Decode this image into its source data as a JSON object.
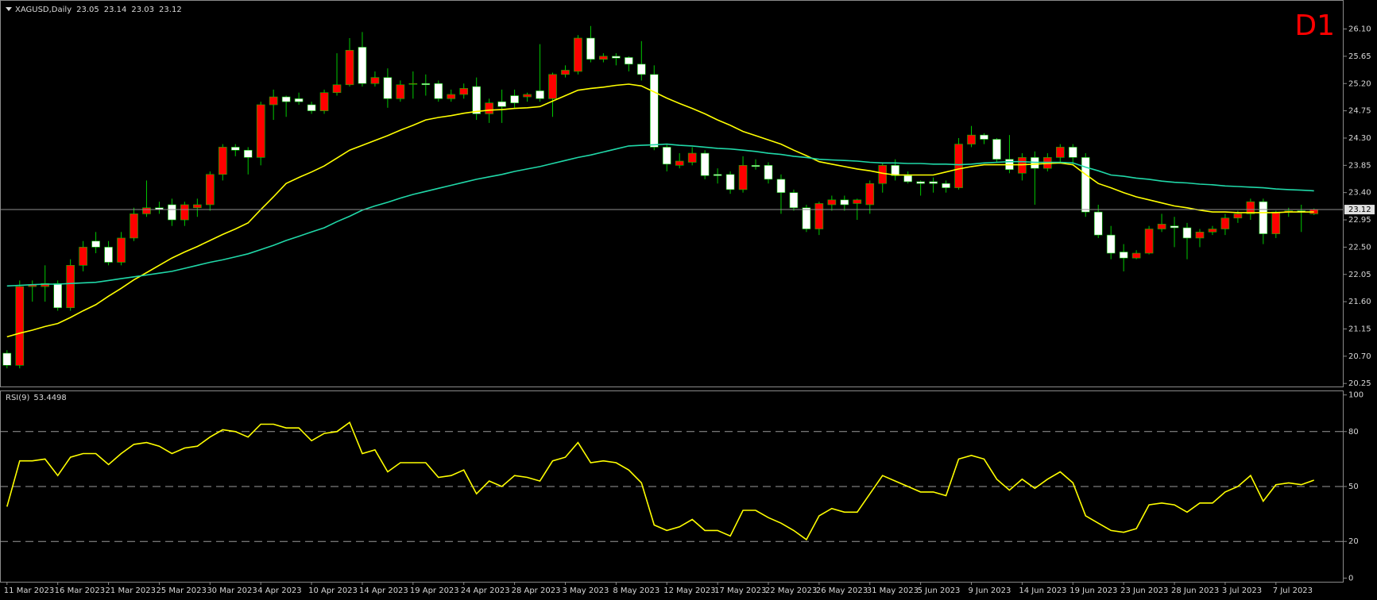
{
  "chart_data": [
    {
      "type": "candlestick",
      "title": "XAGUSD,Daily",
      "timeframe": "D1",
      "categories": [
        "11 Mar 2023",
        null,
        null,
        null,
        "16 Mar 2023",
        null,
        null,
        null,
        "21 Mar 2023",
        null,
        null,
        null,
        "25 Mar 2023",
        null,
        null,
        null,
        "30 Mar 2023",
        null,
        null,
        null,
        "4 Apr 2023",
        null,
        null,
        null,
        "10 Apr 2023",
        null,
        null,
        null,
        "14 Apr 2023",
        null,
        null,
        null,
        "19 Apr 2023",
        null,
        null,
        null,
        "24 Apr 2023",
        null,
        null,
        null,
        "28 Apr 2023",
        null,
        null,
        null,
        "3 May 2023",
        null,
        null,
        null,
        "8 May 2023",
        null,
        null,
        null,
        "12 May 2023",
        null,
        null,
        null,
        "17 May 2023",
        null,
        null,
        null,
        "22 May 2023",
        null,
        null,
        null,
        "26 May 2023",
        null,
        null,
        null,
        "31 May 2023",
        null,
        null,
        null,
        "5 Jun 2023",
        null,
        null,
        null,
        "9 Jun 2023",
        null,
        null,
        null,
        "14 Jun 2023",
        null,
        null,
        null,
        "19 Jun 2023",
        null,
        null,
        null,
        "23 Jun 2023",
        null,
        null,
        null,
        "28 Jun 2023",
        null,
        null,
        null,
        "3 Jul 2023",
        null,
        null,
        null,
        "7 Jul 2023",
        null,
        null,
        null
      ],
      "open": [
        20.75,
        20.55,
        21.85,
        21.85,
        21.9,
        21.5,
        22.2,
        22.6,
        22.5,
        22.25,
        22.65,
        23.05,
        23.15,
        23.2,
        22.95,
        23.15,
        23.2,
        23.7,
        24.15,
        24.1,
        23.98,
        24.85,
        24.98,
        24.95,
        24.85,
        24.75,
        25.05,
        25.18,
        25.8,
        25.2,
        25.3,
        24.95,
        25.2,
        25.2,
        25.2,
        24.95,
        25.02,
        25.15,
        24.7,
        24.9,
        25.0,
        24.98,
        25.08,
        24.95,
        25.35,
        25.4,
        25.95,
        25.6,
        25.65,
        25.63,
        25.52,
        25.35,
        24.15,
        23.85,
        23.9,
        24.05,
        23.7,
        23.7,
        23.45,
        23.85,
        23.85,
        23.62,
        23.4,
        23.15,
        22.8,
        23.2,
        23.28,
        23.22,
        23.2,
        23.55,
        23.85,
        23.68,
        23.58,
        23.58,
        23.55,
        23.48,
        24.2,
        24.35,
        24.28,
        23.95,
        23.72,
        23.98,
        23.8,
        23.98,
        24.15,
        23.98,
        23.08,
        22.7,
        22.42,
        22.32,
        22.4,
        22.8,
        22.85,
        22.82,
        22.65,
        22.75,
        22.8,
        22.98,
        23.05,
        23.25,
        22.72,
        23.08,
        23.1,
        23.05
      ],
      "high": [
        20.8,
        21.95,
        21.95,
        22.2,
        21.95,
        22.3,
        22.6,
        22.75,
        22.6,
        22.75,
        23.15,
        23.6,
        23.25,
        23.3,
        23.25,
        23.3,
        23.75,
        24.2,
        24.2,
        24.15,
        24.9,
        25.1,
        25.0,
        25.05,
        24.9,
        25.1,
        25.7,
        25.95,
        26.05,
        25.4,
        25.45,
        25.25,
        25.4,
        25.35,
        25.25,
        25.1,
        25.2,
        25.3,
        24.95,
        25.1,
        25.1,
        25.05,
        25.85,
        25.38,
        25.5,
        26.0,
        26.15,
        25.7,
        25.7,
        25.65,
        25.9,
        25.5,
        24.2,
        24.05,
        24.15,
        24.1,
        23.8,
        23.75,
        24.0,
        23.95,
        23.9,
        23.7,
        23.45,
        23.2,
        23.25,
        23.35,
        23.35,
        23.3,
        23.6,
        23.9,
        23.95,
        23.75,
        23.6,
        23.65,
        23.6,
        24.3,
        24.5,
        24.38,
        24.3,
        24.35,
        24.05,
        24.08,
        24.05,
        24.2,
        24.2,
        24.05,
        23.2,
        22.85,
        22.55,
        22.45,
        22.85,
        23.05,
        23.0,
        22.9,
        22.8,
        22.85,
        23.05,
        23.1,
        23.3,
        23.3,
        23.1,
        23.15,
        23.2,
        23.14
      ],
      "low": [
        20.5,
        20.5,
        21.6,
        21.6,
        21.45,
        21.45,
        22.1,
        22.4,
        22.2,
        22.2,
        22.6,
        23.0,
        23.05,
        22.85,
        22.85,
        23.0,
        23.1,
        23.6,
        24.0,
        23.7,
        23.85,
        24.6,
        24.65,
        24.85,
        24.7,
        24.7,
        25.0,
        25.15,
        25.15,
        25.15,
        24.8,
        24.9,
        24.95,
        25.0,
        24.9,
        24.9,
        24.95,
        24.6,
        24.55,
        24.55,
        24.8,
        24.9,
        24.9,
        24.65,
        25.3,
        25.35,
        25.55,
        25.55,
        25.5,
        25.4,
        25.25,
        24.1,
        23.75,
        23.8,
        23.85,
        23.62,
        23.55,
        23.38,
        23.4,
        23.78,
        23.55,
        23.05,
        23.1,
        22.75,
        22.7,
        23.1,
        23.1,
        22.95,
        23.05,
        23.4,
        23.6,
        23.55,
        23.35,
        23.4,
        23.4,
        23.45,
        24.15,
        24.2,
        23.9,
        23.72,
        23.6,
        23.2,
        23.75,
        23.9,
        23.85,
        23.0,
        22.65,
        22.3,
        22.1,
        22.3,
        22.38,
        22.75,
        22.5,
        22.3,
        22.5,
        22.7,
        22.7,
        22.9,
        22.95,
        22.55,
        22.65,
        23.0,
        22.75,
        23.03
      ],
      "close": [
        20.55,
        21.85,
        21.88,
        21.9,
        21.5,
        22.2,
        22.5,
        22.5,
        22.25,
        22.65,
        23.05,
        23.15,
        23.12,
        22.95,
        23.2,
        23.2,
        23.7,
        24.15,
        24.1,
        23.98,
        24.85,
        24.98,
        24.9,
        24.9,
        24.75,
        25.05,
        25.18,
        25.75,
        25.2,
        25.3,
        24.95,
        25.18,
        25.2,
        25.18,
        24.95,
        25.02,
        25.12,
        24.7,
        24.88,
        24.82,
        24.88,
        25.02,
        24.95,
        25.35,
        25.42,
        25.95,
        25.6,
        25.65,
        25.62,
        25.52,
        25.35,
        24.15,
        23.87,
        23.92,
        24.05,
        23.68,
        23.68,
        23.45,
        23.85,
        23.83,
        23.62,
        23.4,
        23.15,
        22.8,
        23.22,
        23.28,
        23.2,
        23.28,
        23.55,
        23.85,
        23.68,
        23.58,
        23.55,
        23.55,
        23.48,
        24.2,
        24.35,
        24.28,
        23.95,
        23.78,
        23.98,
        23.8,
        23.98,
        24.15,
        23.98,
        23.08,
        22.7,
        22.4,
        22.32,
        22.4,
        22.8,
        22.88,
        22.82,
        22.65,
        22.75,
        22.8,
        22.98,
        23.05,
        23.25,
        22.72,
        23.08,
        23.1,
        23.08,
        23.12
      ],
      "up_color": "#ff0000",
      "down_color": "#ffffff",
      "wick_color": "#00c800",
      "series": [
        {
          "color": "#ffff00",
          "values": [
            21.02,
            21.08,
            21.13,
            21.19,
            21.24,
            21.34,
            21.45,
            21.55,
            21.69,
            21.82,
            21.96,
            22.08,
            22.2,
            22.32,
            22.42,
            22.51,
            22.61,
            22.71,
            22.8,
            22.9,
            23.12,
            23.33,
            23.55,
            23.65,
            23.74,
            23.84,
            23.97,
            24.1,
            24.18,
            24.26,
            24.34,
            24.43,
            24.51,
            24.6,
            24.64,
            24.67,
            24.71,
            24.74,
            24.76,
            24.77,
            24.79,
            24.8,
            24.82,
            24.91,
            25.0,
            25.09,
            25.12,
            25.14,
            25.17,
            25.19,
            25.16,
            25.06,
            24.96,
            24.87,
            24.79,
            24.7,
            24.6,
            24.51,
            24.41,
            24.34,
            24.27,
            24.2,
            24.1,
            24.01,
            23.91,
            23.87,
            23.83,
            23.79,
            23.76,
            23.72,
            23.69,
            23.69,
            23.69,
            23.69,
            23.74,
            23.79,
            23.83,
            23.86,
            23.86,
            23.86,
            23.86,
            23.87,
            23.88,
            23.89,
            23.86,
            23.7,
            23.55,
            23.48,
            23.4,
            23.33,
            23.28,
            23.23,
            23.18,
            23.15,
            23.11,
            23.08,
            23.08,
            23.07,
            23.07,
            23.07,
            23.07,
            23.08,
            23.08,
            23.08
          ]
        },
        {
          "color": "#20d8a8",
          "values": [
            21.86,
            21.87,
            21.88,
            21.89,
            21.89,
            21.9,
            21.91,
            21.92,
            21.95,
            21.98,
            22.01,
            22.04,
            22.07,
            22.1,
            22.15,
            22.2,
            22.25,
            22.29,
            22.34,
            22.39,
            22.46,
            22.53,
            22.61,
            22.68,
            22.75,
            22.82,
            22.92,
            23.01,
            23.11,
            23.18,
            23.24,
            23.31,
            23.37,
            23.42,
            23.47,
            23.52,
            23.57,
            23.62,
            23.66,
            23.7,
            23.75,
            23.79,
            23.83,
            23.88,
            23.93,
            23.98,
            24.02,
            24.07,
            24.12,
            24.17,
            24.18,
            24.19,
            24.2,
            24.18,
            24.17,
            24.15,
            24.13,
            24.12,
            24.1,
            24.08,
            24.05,
            24.03,
            24.0,
            23.98,
            23.95,
            23.94,
            23.93,
            23.92,
            23.9,
            23.89,
            23.89,
            23.88,
            23.88,
            23.87,
            23.87,
            23.86,
            23.87,
            23.89,
            23.9,
            23.91,
            23.91,
            23.9,
            23.9,
            23.9,
            23.89,
            23.82,
            23.76,
            23.69,
            23.67,
            23.64,
            23.62,
            23.59,
            23.57,
            23.56,
            23.54,
            23.53,
            23.51,
            23.5,
            23.49,
            23.48,
            23.46,
            23.45,
            23.44,
            23.43
          ]
        }
      ],
      "ylim": [
        20.2,
        26.5
      ],
      "yticks": [
        20.25,
        {
          "value": 20.7,
          "label": "20.70"
        },
        21.15,
        {
          "value": 21.6,
          "label": "21.60"
        },
        22.05,
        {
          "value": 22.5,
          "label": "22.50"
        },
        22.95,
        {
          "value": 23.4,
          "label": "23.40"
        },
        23.85,
        {
          "value": 24.3,
          "label": "24.30"
        },
        24.75,
        {
          "value": 25.2,
          "label": "25.20"
        },
        25.65,
        {
          "value": 26.1,
          "label": "26.10"
        }
      ]
    },
    {
      "type": "line",
      "title": "RSI(9)",
      "color": "#ffff00",
      "values": [
        39,
        64,
        64,
        65,
        56,
        66,
        68,
        68,
        62,
        68,
        73,
        74,
        72,
        68,
        71,
        72,
        77,
        81,
        80,
        77,
        84,
        84,
        82,
        82,
        75,
        79,
        80,
        85,
        68,
        70,
        58,
        63,
        63,
        63,
        55,
        56,
        59,
        46,
        53,
        50,
        56,
        55,
        53,
        64,
        66,
        74,
        63,
        64,
        63,
        59,
        52,
        29,
        26,
        28,
        32,
        26,
        26,
        23,
        37,
        37,
        33,
        30,
        26,
        21,
        34,
        38,
        36,
        36,
        46,
        56,
        53,
        50,
        47,
        47,
        45,
        65,
        67,
        65,
        54,
        48,
        54,
        49,
        54,
        58,
        52,
        34,
        30,
        26,
        25,
        27,
        40,
        41,
        40,
        36,
        41,
        41,
        47,
        50,
        56,
        42,
        51,
        52,
        51,
        53.4498
      ],
      "ylim": [
        -2,
        102
      ],
      "yticks": [
        100,
        80,
        50,
        20,
        0
      ],
      "levels": [
        80,
        50,
        20
      ]
    }
  ]
}
